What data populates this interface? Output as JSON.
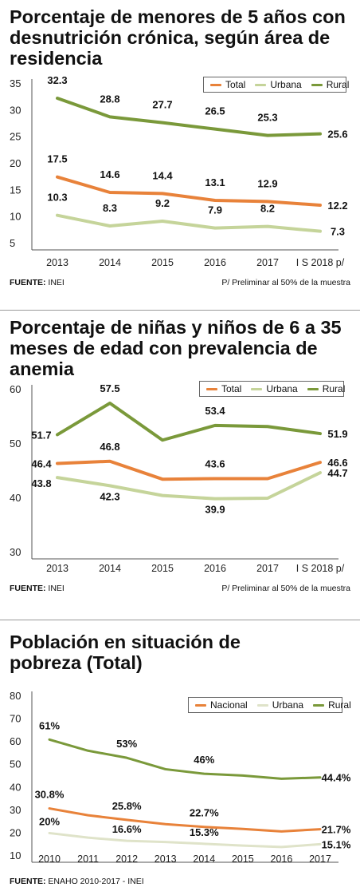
{
  "colors": {
    "total": "#e8823a",
    "urbana": "#c5d49a",
    "rural": "#7a993a",
    "pobreza_urbana": "#dfe3c9"
  },
  "chart_data": [
    {
      "type": "line",
      "title": "Porcentaje de menores de 5 años con desnutrición crónica, según área de residencia",
      "categories": [
        "2013",
        "2014",
        "2015",
        "2016",
        "2017",
        "I S 2018 p/"
      ],
      "ylim": [
        5,
        35
      ],
      "yticks": [
        "5",
        "10",
        "15",
        "20",
        "25",
        "30",
        "35"
      ],
      "series": [
        {
          "name": "Total",
          "values": [
            17.5,
            14.6,
            14.4,
            13.1,
            12.9,
            12.2
          ],
          "labels": [
            "17.5",
            "14.6",
            "14.4",
            "13.1",
            "12.9",
            "12.2"
          ]
        },
        {
          "name": "Urbana",
          "values": [
            10.3,
            8.3,
            9.2,
            7.9,
            8.2,
            7.3
          ],
          "labels": [
            "10.3",
            "8.3",
            "9.2",
            "7.9",
            "8.2",
            "7.3"
          ]
        },
        {
          "name": "Rural",
          "values": [
            32.3,
            28.8,
            27.7,
            26.5,
            25.3,
            25.6
          ],
          "labels": [
            "32.3",
            "28.8",
            "27.7",
            "26.5",
            "25.3",
            "25.6"
          ]
        }
      ],
      "legend": [
        "Total",
        "Urbana",
        "Rural"
      ],
      "legend_position": "top-right",
      "grid": false,
      "source_label": "FUENTE:",
      "source_value": "INEI",
      "note": "P/ Preliminar al 50% de la muestra"
    },
    {
      "type": "line",
      "title": "Porcentaje de niñas y niños de 6 a 35 meses de edad con prevalencia de anemia",
      "categories": [
        "2013",
        "2014",
        "2015",
        "2016",
        "2017",
        "I S 2018 p/"
      ],
      "ylim": [
        30,
        60
      ],
      "yticks": [
        "30",
        "40",
        "50",
        "60"
      ],
      "series": [
        {
          "name": "Total",
          "values": [
            46.4,
            46.8,
            43.5,
            43.6,
            43.6,
            46.6
          ],
          "labels": [
            "46.4",
            "46.8",
            "",
            "43.6",
            "",
            "46.6"
          ]
        },
        {
          "name": "Urbana",
          "values": [
            43.8,
            42.3,
            40.5,
            39.9,
            40.0,
            44.7
          ],
          "labels": [
            "43.8",
            "42.3",
            "",
            "39.9",
            "",
            "44.7"
          ]
        },
        {
          "name": "Rural",
          "values": [
            51.7,
            57.5,
            50.7,
            53.4,
            53.2,
            51.9
          ],
          "labels": [
            "51.7",
            "57.5",
            "",
            "53.4",
            "",
            "51.9"
          ]
        }
      ],
      "legend": [
        "Total",
        "Urbana",
        "Rural"
      ],
      "legend_position": "top-right",
      "grid": false,
      "source_label": "FUENTE:",
      "source_value": "INEI",
      "note": "P/ Preliminar al 50% de la muestra"
    },
    {
      "type": "line",
      "title": "Población en situación de pobreza (Total)",
      "categories": [
        "2010",
        "2011",
        "2012",
        "2013",
        "2014",
        "2015",
        "2016",
        "2017"
      ],
      "ylim": [
        10,
        80
      ],
      "yticks": [
        "10",
        "20",
        "30",
        "40",
        "50",
        "60",
        "70",
        "80"
      ],
      "series": [
        {
          "name": "Nacional",
          "values": [
            30.8,
            27.8,
            25.8,
            23.9,
            22.7,
            21.8,
            20.7,
            21.7
          ],
          "labels": [
            "30.8%",
            "",
            "25.8%",
            "",
            "22.7%",
            "",
            "",
            "21.7%"
          ]
        },
        {
          "name": "Urbana",
          "values": [
            20,
            18.0,
            16.6,
            16.1,
            15.3,
            14.5,
            13.9,
            15.1
          ],
          "labels": [
            "20%",
            "",
            "16.6%",
            "",
            "15.3%",
            "",
            "",
            "15.1%"
          ]
        },
        {
          "name": "Rural",
          "values": [
            61,
            56.1,
            53,
            48,
            46,
            45.2,
            43.8,
            44.4
          ],
          "labels": [
            "61%",
            "",
            "53%",
            "",
            "46%",
            "",
            "",
            "44.4%"
          ]
        }
      ],
      "legend": [
        "Nacional",
        "Urbana",
        "Rural"
      ],
      "legend_position": "top-right",
      "grid": false,
      "source_label": "FUENTE:",
      "source_value": "ENAHO 2010-2017 - INEI",
      "note": ""
    }
  ]
}
